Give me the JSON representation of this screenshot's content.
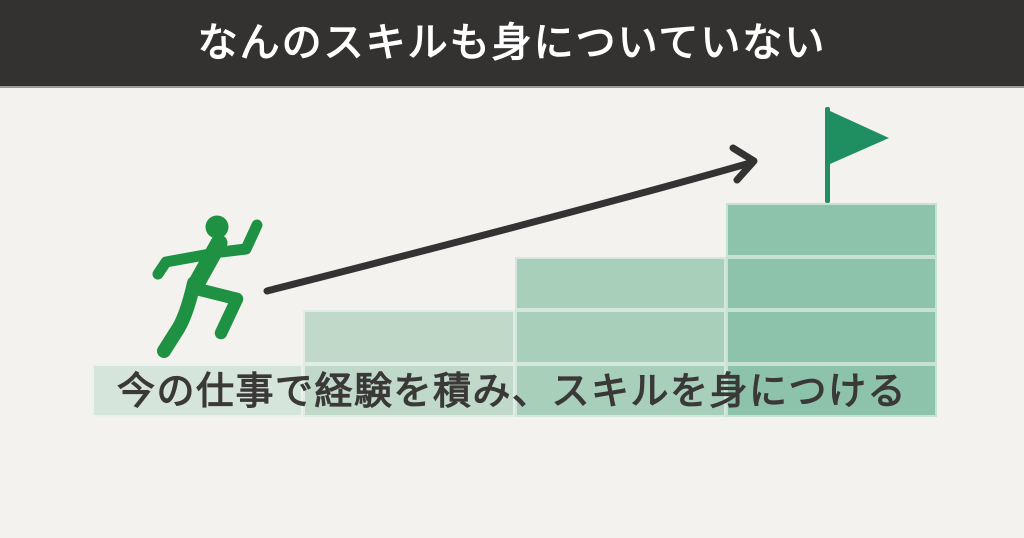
{
  "page": {
    "bg_color": "#f3f2ee"
  },
  "header": {
    "title": "なんのスキルも身についていない",
    "bg_color": "#333231",
    "text_color": "#ffffff",
    "edge_color": "#9b9c91"
  },
  "caption": {
    "text": "今の仕事で経験を積み、スキルを身につける",
    "text_color": "#3a3938"
  },
  "illustration": {
    "runner_icon": {
      "label": "running-person",
      "color": "#1e9143"
    },
    "arrow": {
      "label": "rising-growth-arrow",
      "color": "#333333"
    },
    "flag_icon": {
      "label": "goal-flag",
      "color": "#1f8f62"
    },
    "stairs": {
      "label": "skill-step-staircase",
      "step_levels": [
        1,
        2,
        3,
        4
      ],
      "step_colors": [
        "#d6e5db",
        "#c0d9c9",
        "#a7cfba",
        "#8ec3ab"
      ],
      "separator_color": "rgba(255,255,255,0.5)"
    }
  }
}
